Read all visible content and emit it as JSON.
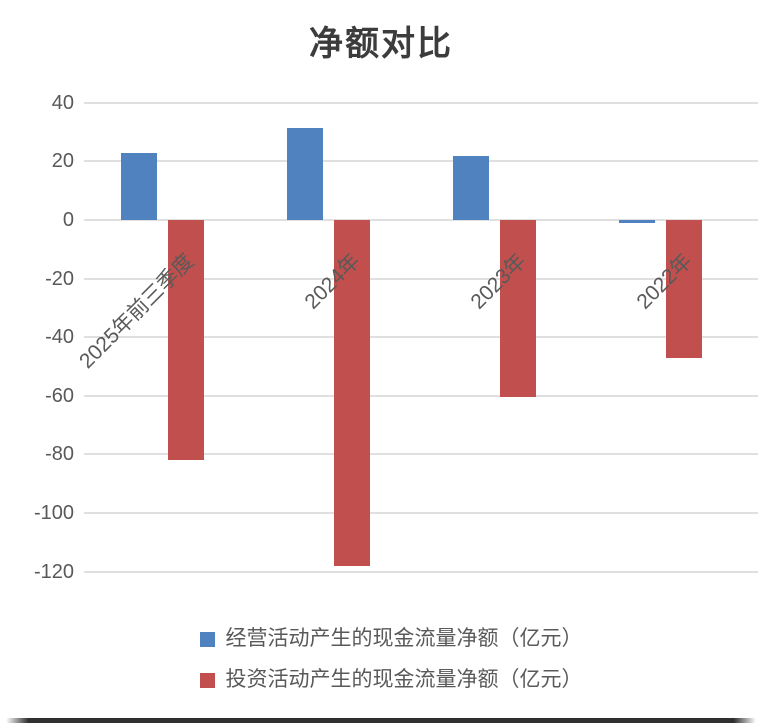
{
  "chart_data": {
    "type": "bar",
    "title": "净额对比",
    "categories": [
      "2025年前三季度",
      "2024年",
      "2023年",
      "2022年"
    ],
    "series": [
      {
        "name": "经营活动产生的现金流量净额（亿元）",
        "color": "#4f82bf",
        "values": [
          23,
          31.5,
          22,
          -1
        ]
      },
      {
        "name": "投资活动产生的现金流量净额（亿元）",
        "color": "#c14f4d",
        "values": [
          -82,
          -118,
          -60.5,
          -47
        ]
      }
    ],
    "y_ticks": [
      40,
      20,
      0,
      -20,
      -40,
      -60,
      -80,
      -100,
      -120
    ],
    "ylim": [
      -130,
      42
    ],
    "xlabel": "",
    "ylabel": "",
    "grid": true,
    "legend_position": "bottom",
    "colors": {
      "grid": "#e0e0e0",
      "axis_text": "#595959",
      "title_text": "#3c3c3c"
    }
  }
}
